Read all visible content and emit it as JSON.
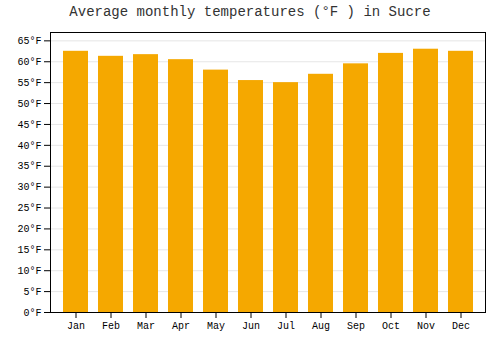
{
  "chart_data": {
    "type": "bar",
    "title": "Average monthly temperatures (°F ) in Sucre",
    "categories": [
      "Jan",
      "Feb",
      "Mar",
      "Apr",
      "May",
      "Jun",
      "Jul",
      "Aug",
      "Sep",
      "Oct",
      "Nov",
      "Dec"
    ],
    "values": [
      62.5,
      61.3,
      61.7,
      60.5,
      58.0,
      55.5,
      55.0,
      57.0,
      59.5,
      62.0,
      63.0,
      62.5
    ],
    "color": "#F5A800",
    "ylim": [
      0,
      67
    ],
    "yticks": [
      {
        "value": 0,
        "label": "0°F"
      },
      {
        "value": 5,
        "label": "5°F"
      },
      {
        "value": 10,
        "label": "10°F"
      },
      {
        "value": 15,
        "label": "15°F"
      },
      {
        "value": 20,
        "label": "20°F"
      },
      {
        "value": 25,
        "label": "25°F"
      },
      {
        "value": 30,
        "label": "30°F"
      },
      {
        "value": 35,
        "label": "35°F"
      },
      {
        "value": 40,
        "label": "40°F"
      },
      {
        "value": 45,
        "label": "45°F"
      },
      {
        "value": 50,
        "label": "50°F"
      },
      {
        "value": 55,
        "label": "55°F"
      },
      {
        "value": 60,
        "label": "60°F"
      },
      {
        "value": 65,
        "label": "65°F"
      }
    ],
    "grid": true
  }
}
